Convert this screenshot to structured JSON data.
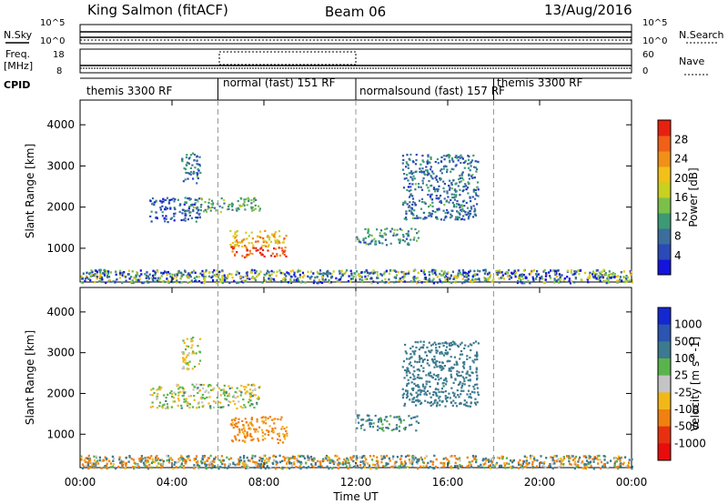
{
  "header": {
    "title": "King Salmon (fitACF)",
    "beam": "Beam 06",
    "date": "13/Aug/2016"
  },
  "strip_labels": {
    "nsky": "N.Sky",
    "nsearch": "N.Search",
    "freq_line1": "Freq.",
    "freq_line2": "[MHz]",
    "nave": "Nave",
    "cpid": "CPID"
  },
  "noise_panel": {
    "left_ticks": [
      "10^5",
      "10^0"
    ],
    "right_ticks": [
      "10^5",
      "10^0"
    ]
  },
  "freq_panel": {
    "left_ticks": [
      "18",
      "8"
    ],
    "right_ticks": [
      "60",
      "0"
    ]
  },
  "cpid_segments": [
    {
      "label": "themis 3300 RF",
      "start": 0,
      "end": 6
    },
    {
      "label": "normal (fast) 151 RF",
      "start": 6,
      "end": 12
    },
    {
      "label": "normalsound (fast) 157 RF",
      "start": 12,
      "end": 18
    },
    {
      "label": "themis 3300 RF",
      "start": 18,
      "end": 24
    }
  ],
  "chart_data": [
    {
      "type": "heatmap",
      "name": "power",
      "xlabel": "",
      "ylabel": "Slant Range [km]",
      "xlim": [
        0,
        24
      ],
      "ylim": [
        180,
        4600
      ],
      "y_ticks": [
        1000,
        2000,
        3000,
        4000
      ],
      "colorbar": {
        "label": "Power [dB]",
        "range": [
          0,
          32
        ],
        "ticks": [
          4,
          8,
          12,
          16,
          20,
          24,
          28
        ],
        "colors": [
          "#1414dc",
          "#2a4ab8",
          "#3b6e9c",
          "#3c9a74",
          "#7bc04a",
          "#c8d020",
          "#f2c018",
          "#f09018",
          "#f06018",
          "#e82010"
        ]
      },
      "echo_regions": [
        {
          "t": [
            4.4,
            5.2
          ],
          "r": [
            2600,
            3400
          ],
          "value": 8
        },
        {
          "t": [
            3.0,
            5.2
          ],
          "r": [
            1650,
            2250
          ],
          "value": 6
        },
        {
          "t": [
            4.5,
            7.8
          ],
          "r": [
            1900,
            2250
          ],
          "value": 12
        },
        {
          "t": [
            6.5,
            9.0
          ],
          "r": [
            800,
            1450
          ],
          "value": 22
        },
        {
          "t": [
            12.0,
            14.7
          ],
          "r": [
            1100,
            1500
          ],
          "value": 10
        },
        {
          "t": [
            14.0,
            17.3
          ],
          "r": [
            1700,
            3300
          ],
          "value": 8
        },
        {
          "t": [
            0.0,
            24.0
          ],
          "r": [
            180,
            500
          ],
          "value": 10
        }
      ]
    },
    {
      "type": "heatmap",
      "name": "velocity",
      "xlabel": "Time UT",
      "ylabel": "Slant Range [km]",
      "xlim": [
        0,
        24
      ],
      "ylim": [
        180,
        4600
      ],
      "y_ticks": [
        1000,
        2000,
        3000,
        4000
      ],
      "x_ticks": [
        "00:00",
        "04:00",
        "08:00",
        "12:00",
        "16:00",
        "20:00",
        "00:00"
      ],
      "colorbar": {
        "label": "Velocity [m s^-1]",
        "tick_labels": [
          "1000",
          "500",
          "100",
          "25",
          "-25",
          "-100",
          "-500",
          "-1000"
        ],
        "colors": [
          "#1428d2",
          "#2a55b0",
          "#3c7a90",
          "#5ab44c",
          "#c4c4c4",
          "#f2b818",
          "#f08010",
          "#e83010",
          "#e80c0c"
        ]
      },
      "echo_regions": [
        {
          "t": [
            4.4,
            5.2
          ],
          "r": [
            2600,
            3400
          ],
          "value": 0
        },
        {
          "t": [
            3.0,
            7.8
          ],
          "r": [
            1650,
            2250
          ],
          "value": 10
        },
        {
          "t": [
            6.5,
            9.0
          ],
          "r": [
            800,
            1450
          ],
          "value": -150
        },
        {
          "t": [
            12.0,
            14.7
          ],
          "r": [
            1100,
            1500
          ],
          "value": 150
        },
        {
          "t": [
            14.0,
            17.3
          ],
          "r": [
            1700,
            3300
          ],
          "value": 400
        },
        {
          "t": [
            0.0,
            24.0
          ],
          "r": [
            180,
            500
          ],
          "value": 0
        }
      ]
    }
  ]
}
